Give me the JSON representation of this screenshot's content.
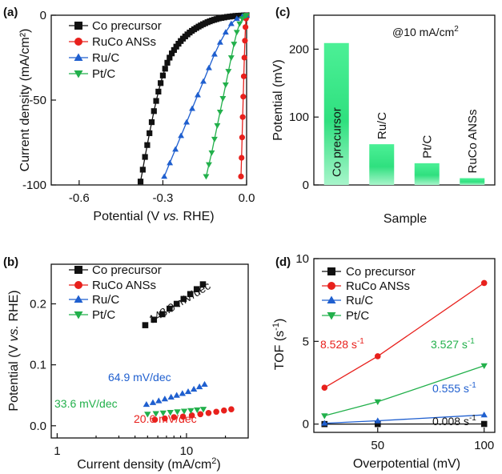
{
  "chart_data": [
    {
      "panel": "(a)",
      "type": "line",
      "xlabel_pre": "Potential (V ",
      "xlabel_it": "vs.",
      "xlabel_post": " RHE)",
      "ylabel": "Current density (mA/cm²)",
      "xlim": [
        -0.7,
        0.0
      ],
      "ylim": [
        -100,
        0
      ],
      "xticks": [
        -0.6,
        -0.3,
        0.0
      ],
      "xtick_labels": [
        "-0.6",
        "-0.3",
        "0.0"
      ],
      "yticks": [
        0,
        -50,
        -100
      ],
      "ytick_labels": [
        "0",
        "-50",
        "-100"
      ],
      "legend": "top-left",
      "series": [
        {
          "name": "Co precursor",
          "color": "#111111",
          "marker": "square",
          "x": [
            -0.38,
            -0.372,
            -0.364,
            -0.356,
            -0.348,
            -0.34,
            -0.332,
            -0.324,
            -0.316,
            -0.308,
            -0.3,
            -0.292,
            -0.284,
            -0.276,
            -0.268,
            -0.26,
            -0.252,
            -0.244,
            -0.236,
            -0.228,
            -0.22,
            -0.212,
            -0.204,
            -0.196,
            -0.188,
            -0.18,
            -0.172,
            -0.164,
            -0.156,
            -0.148,
            -0.14,
            -0.132,
            -0.124,
            -0.116,
            -0.108,
            -0.1,
            -0.09,
            -0.08,
            -0.07,
            -0.06,
            -0.05,
            -0.04,
            -0.03,
            -0.02,
            -0.01,
            0.0
          ],
          "y": [
            -98.0,
            -91.0,
            -83.5,
            -76.5,
            -69.5,
            -63.0,
            -56.5,
            -50.5,
            -45.0,
            -40.0,
            -35.5,
            -31.5,
            -28.0,
            -25.0,
            -22.5,
            -20.5,
            -18.5,
            -16.8,
            -15.2,
            -13.8,
            -12.5,
            -11.3,
            -10.2,
            -9.2,
            -8.3,
            -7.5,
            -6.7,
            -6.0,
            -5.3,
            -4.7,
            -4.1,
            -3.6,
            -3.1,
            -2.7,
            -2.3,
            -1.9,
            -1.6,
            -1.3,
            -1.0,
            -0.8,
            -0.6,
            -0.4,
            -0.3,
            -0.2,
            -0.1,
            0.0
          ]
        },
        {
          "name": "RuCo ANSs",
          "color": "#e8201c",
          "marker": "circle",
          "x": [
            -0.02,
            -0.018,
            -0.016,
            -0.014,
            -0.012,
            -0.01,
            -0.008,
            -0.006,
            -0.004,
            -0.002,
            0.0
          ],
          "y": [
            -95.0,
            -84.0,
            -72.0,
            -60.0,
            -48.0,
            -36.0,
            -25.0,
            -15.0,
            -7.0,
            -2.0,
            0.0
          ]
        },
        {
          "name": "Ru/C",
          "color": "#1f5fcf",
          "marker": "triangle-up",
          "x": [
            -0.295,
            -0.275,
            -0.255,
            -0.235,
            -0.215,
            -0.195,
            -0.175,
            -0.155,
            -0.135,
            -0.115,
            -0.095,
            -0.075,
            -0.055,
            -0.035,
            -0.015,
            0.0
          ],
          "y": [
            -95.0,
            -87.0,
            -79.0,
            -71.0,
            -63.0,
            -55.0,
            -47.0,
            -39.0,
            -31.0,
            -23.0,
            -16.0,
            -10.0,
            -5.0,
            -2.0,
            -0.5,
            0.0
          ]
        },
        {
          "name": "Pt/C",
          "color": "#22b04b",
          "marker": "triangle-down",
          "x": [
            -0.145,
            -0.135,
            -0.125,
            -0.115,
            -0.105,
            -0.095,
            -0.085,
            -0.075,
            -0.065,
            -0.055,
            -0.045,
            -0.035,
            -0.025,
            -0.015,
            -0.005,
            0.0
          ],
          "y": [
            -95.0,
            -88.0,
            -81.0,
            -73.0,
            -65.0,
            -57.0,
            -49.0,
            -41.0,
            -33.0,
            -25.0,
            -17.0,
            -10.0,
            -5.0,
            -2.0,
            -0.5,
            0.0
          ]
        }
      ]
    },
    {
      "panel": "(c)",
      "type": "bar",
      "annotation_pre": "@10 mA/cm",
      "annotation_sup": "2",
      "xlabel": "Sample",
      "ylabel": "Potential (mV)",
      "ylim": [
        0,
        250
      ],
      "yticks": [
        0,
        100,
        200
      ],
      "ytick_labels": [
        "0",
        "100",
        "200"
      ],
      "categories": [
        "Co precursor",
        "Ru/C",
        "Pt/C",
        "RuCo ANSs"
      ],
      "values": [
        209,
        60,
        32,
        10
      ],
      "bar_color": "#22e07a"
    },
    {
      "panel": "(b)",
      "type": "scatter",
      "xlabel_pre": "Current density (mA/cm",
      "xlabel_sup": "2",
      "xlabel_post": ")",
      "ylabel_pre": "Potential (V ",
      "ylabel_it": "vs.",
      "ylabel_post": " RHE)",
      "xscale": "log",
      "xlim": [
        0.9,
        30
      ],
      "ylim": [
        -0.02,
        0.265
      ],
      "xticks": [
        1,
        10
      ],
      "xtick_labels": [
        "1",
        "10"
      ],
      "yticks": [
        0.0,
        0.1,
        0.2
      ],
      "ytick_labels": [
        "0.0",
        "0.1",
        "0.2"
      ],
      "legend": "top-left",
      "series": [
        {
          "name": "Co precursor",
          "color": "#111111",
          "marker": "square",
          "x": [
            4.8,
            5.6,
            6.5,
            7.4,
            8.4,
            9.5,
            10.7,
            12.0,
            13.4
          ],
          "y": [
            0.165,
            0.174,
            0.183,
            0.192,
            0.2,
            0.208,
            0.216,
            0.224,
            0.232
          ],
          "tafel": "148.9 mV/dec"
        },
        {
          "name": "RuCo ANSs",
          "color": "#e8201c",
          "marker": "circle",
          "x": [
            5.7,
            6.8,
            8.0,
            9.4,
            11.0,
            12.8,
            14.8,
            17.0,
            19.5,
            22.2
          ],
          "y": [
            0.01,
            0.012,
            0.014,
            0.015,
            0.017,
            0.019,
            0.021,
            0.023,
            0.025,
            0.027
          ],
          "tafel": "20.6 mV/dec"
        },
        {
          "name": "Ru/C",
          "color": "#1f5fcf",
          "marker": "triangle-up",
          "x": [
            4.9,
            5.5,
            6.1,
            6.8,
            7.6,
            8.4,
            9.3,
            10.3,
            11.4,
            12.6,
            13.8
          ],
          "y": [
            0.035,
            0.038,
            0.041,
            0.044,
            0.047,
            0.05,
            0.053,
            0.056,
            0.06,
            0.064,
            0.068
          ],
          "tafel": "64.9 mV/dec"
        },
        {
          "name": "Pt/C",
          "color": "#22b04b",
          "marker": "triangle-down",
          "x": [
            5.0,
            5.8,
            6.6,
            7.5,
            8.5,
            9.6,
            10.8,
            12.1,
            13.5
          ],
          "y": [
            0.019,
            0.02,
            0.021,
            0.022,
            0.023,
            0.024,
            0.025,
            0.026,
            0.027
          ],
          "tafel": "33.6 mV/dec"
        }
      ]
    },
    {
      "panel": "(d)",
      "type": "line",
      "xlabel": "Overpotential (mV)",
      "ylabel_pre": "TOF (s",
      "ylabel_sup": "-1",
      "ylabel_post": ")",
      "xlim": [
        20,
        105
      ],
      "ylim": [
        -0.5,
        10
      ],
      "xticks": [
        50,
        100
      ],
      "xtick_labels": [
        "50",
        "100"
      ],
      "yticks": [
        0,
        5,
        10
      ],
      "ytick_labels": [
        "0",
        "5",
        "10"
      ],
      "legend": "top-left",
      "series": [
        {
          "name": "Co precursor",
          "color": "#111111",
          "marker": "square",
          "x": [
            25,
            50,
            100
          ],
          "y": [
            0.0,
            0.002,
            0.008
          ],
          "end_value": "0.008 s",
          "unit_sup": "-1"
        },
        {
          "name": "RuCo ANSs",
          "color": "#e8201c",
          "marker": "circle",
          "x": [
            25,
            50,
            100
          ],
          "y": [
            2.2,
            4.1,
            8.528
          ],
          "end_value": "8.528 s",
          "unit_sup": "-1"
        },
        {
          "name": "Ru/C",
          "color": "#1f5fcf",
          "marker": "triangle-up",
          "x": [
            25,
            50,
            100
          ],
          "y": [
            0.05,
            0.2,
            0.555
          ],
          "end_value": "0.555 s",
          "unit_sup": "-1"
        },
        {
          "name": "Pt/C",
          "color": "#22b04b",
          "marker": "triangle-down",
          "x": [
            25,
            50,
            100
          ],
          "y": [
            0.5,
            1.35,
            3.527
          ],
          "end_value": "3.527 s",
          "unit_sup": "-1"
        }
      ]
    }
  ]
}
